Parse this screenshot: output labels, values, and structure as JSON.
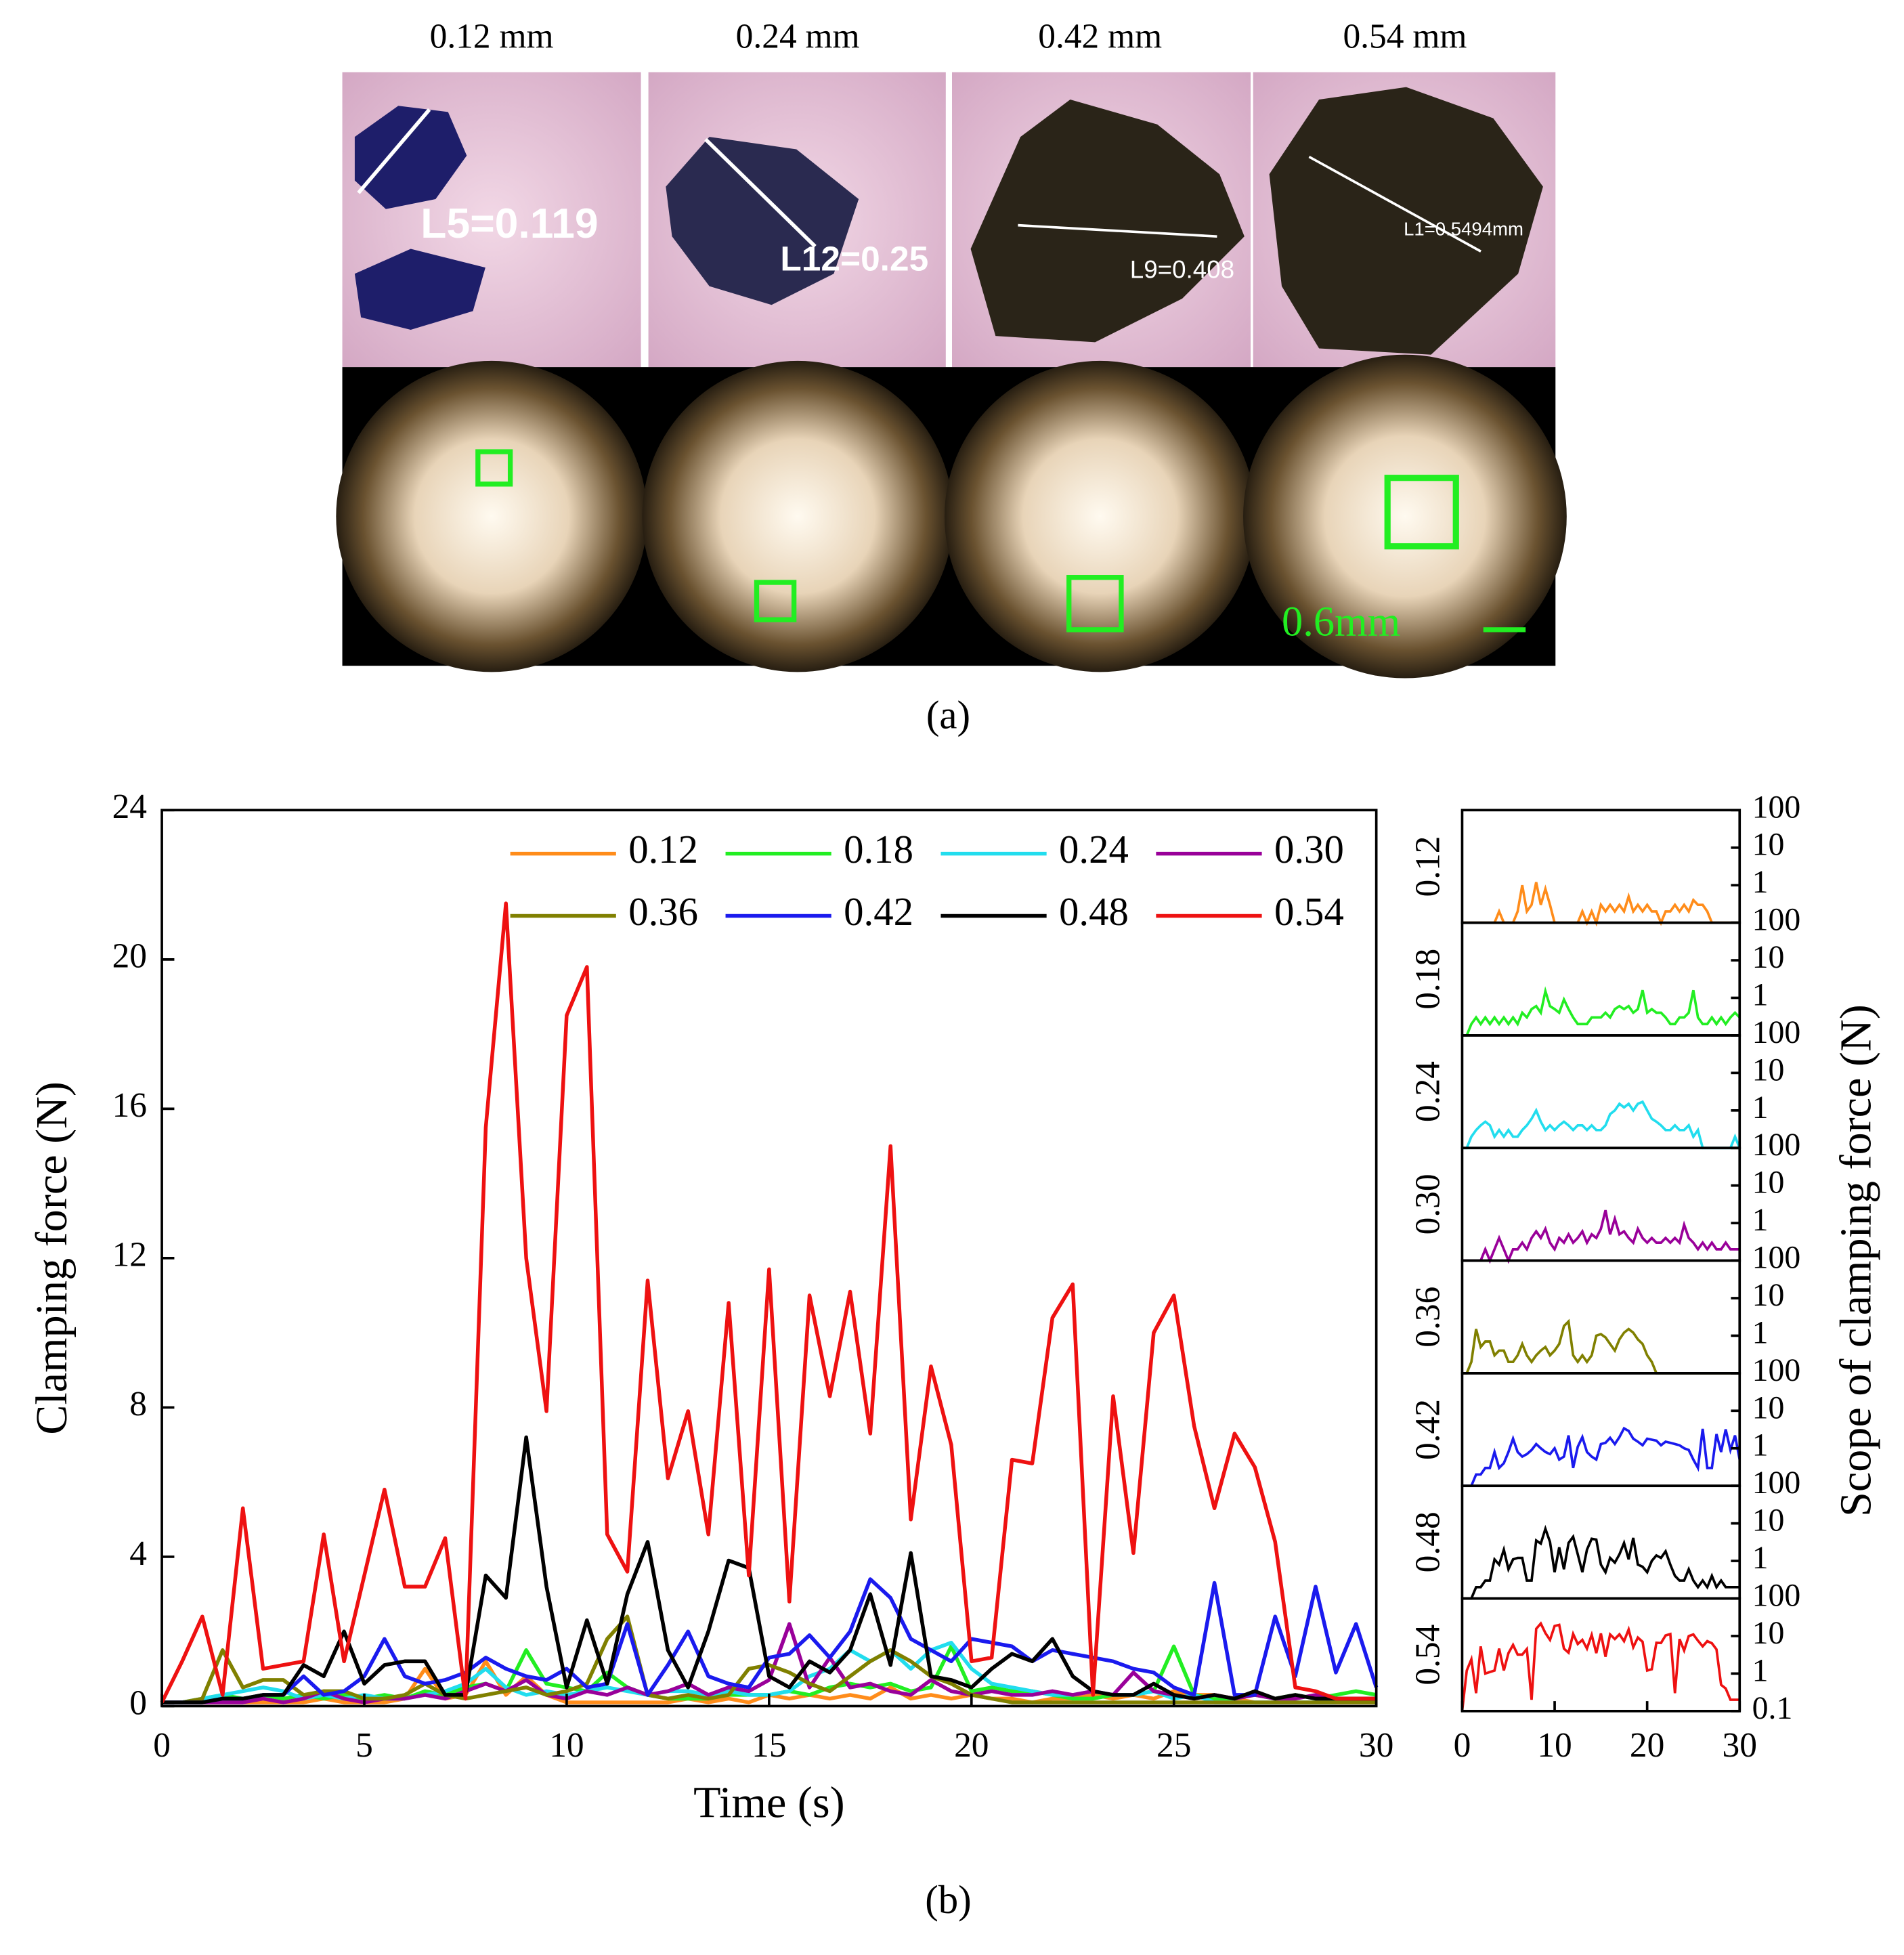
{
  "figure_a": {
    "sizes": [
      "0.12 mm",
      "0.24 mm",
      "0.42 mm",
      "0.54 mm"
    ],
    "measurements": [
      "L5=0.119",
      "L12=0.25",
      "L9=0.408",
      "L1=0.5494mm"
    ],
    "scale_bar": "0.6mm",
    "caption": "(a)"
  },
  "caption_b": "(b)",
  "chart_data": [
    {
      "type": "line",
      "xlabel": "Time (s)",
      "ylabel": "Clamping force (N)",
      "xlim": [
        0,
        30
      ],
      "xticks": [
        0,
        5,
        10,
        15,
        20,
        25,
        30
      ],
      "ylim": [
        0,
        24
      ],
      "yticks": [
        0,
        4,
        8,
        12,
        16,
        20,
        24
      ],
      "legend": "upper right",
      "x": [
        0,
        0.5,
        1,
        1.5,
        2,
        2.5,
        3,
        3.5,
        4,
        4.5,
        5,
        5.5,
        6,
        6.5,
        7,
        7.5,
        8,
        8.5,
        9,
        9.5,
        10,
        10.5,
        11,
        11.5,
        12,
        12.5,
        13,
        13.5,
        14,
        14.5,
        15,
        15.5,
        16,
        16.5,
        17,
        17.5,
        18,
        18.5,
        19,
        19.5,
        20,
        20.5,
        21,
        21.5,
        22,
        22.5,
        23,
        23.5,
        24,
        24.5,
        25,
        25.5,
        26,
        26.5,
        27,
        27.5,
        28,
        28.5,
        29,
        29.5,
        30
      ],
      "series": [
        {
          "name": "0.12",
          "color": "#ff8c1a",
          "values": [
            0.1,
            0.1,
            0.1,
            0.1,
            0.1,
            0.1,
            0.1,
            0.1,
            0.2,
            0.1,
            0.1,
            0.1,
            0.2,
            1.0,
            0.2,
            0.3,
            1.2,
            0.3,
            0.8,
            0.3,
            0.1,
            0.1,
            0.1,
            0.1,
            0.1,
            0.1,
            0.2,
            0.1,
            0.2,
            0.1,
            0.3,
            0.2,
            0.3,
            0.2,
            0.3,
            0.2,
            0.5,
            0.2,
            0.3,
            0.2,
            0.3,
            0.2,
            0.2,
            0.1,
            0.2,
            0.2,
            0.3,
            0.2,
            0.3,
            0.2,
            0.4,
            0.3,
            0.3,
            0.2,
            0.1,
            0.1,
            0.1,
            0.1,
            0.1,
            0.1,
            0.1
          ]
        },
        {
          "name": "0.18",
          "color": "#22ee22",
          "values": [
            0.1,
            0.1,
            0.2,
            0.3,
            0.2,
            0.3,
            0.2,
            0.3,
            0.2,
            0.3,
            0.2,
            0.3,
            0.2,
            0.4,
            0.3,
            0.5,
            0.6,
            0.4,
            1.5,
            0.6,
            0.5,
            0.4,
            0.9,
            0.5,
            0.3,
            0.2,
            0.2,
            0.2,
            0.3,
            0.3,
            0.3,
            0.4,
            0.3,
            0.5,
            0.6,
            0.5,
            0.6,
            0.4,
            0.5,
            1.6,
            0.4,
            0.5,
            0.4,
            0.4,
            0.3,
            0.2,
            0.2,
            0.3,
            0.3,
            0.4,
            1.6,
            0.3,
            0.2,
            0.2,
            0.3,
            0.2,
            0.3,
            0.2,
            0.3,
            0.4,
            0.3
          ]
        },
        {
          "name": "0.24",
          "color": "#22ddee",
          "values": [
            0.1,
            0.1,
            0.2,
            0.3,
            0.4,
            0.5,
            0.4,
            0.2,
            0.3,
            0.2,
            0.3,
            0.2,
            0.2,
            0.3,
            0.4,
            0.6,
            1.0,
            0.5,
            0.3,
            0.4,
            0.3,
            0.4,
            0.5,
            0.4,
            0.3,
            0.4,
            0.4,
            0.3,
            0.4,
            0.3,
            0.3,
            0.4,
            0.8,
            1.0,
            1.5,
            1.2,
            1.5,
            1.0,
            1.5,
            1.7,
            1.0,
            0.6,
            0.5,
            0.4,
            0.3,
            0.3,
            0.4,
            0.3,
            0.3,
            0.4,
            0.2,
            0.3,
            0.1,
            0.1,
            0.1,
            0.1,
            0.1,
            0.1,
            0.1,
            0.2,
            0.1
          ]
        },
        {
          "name": "0.30",
          "color": "#990099",
          "values": [
            0.1,
            0.1,
            0.1,
            0.1,
            0.1,
            0.2,
            0.1,
            0.2,
            0.4,
            0.2,
            0.1,
            0.2,
            0.2,
            0.3,
            0.2,
            0.4,
            0.6,
            0.4,
            0.7,
            0.3,
            0.2,
            0.4,
            0.3,
            0.5,
            0.3,
            0.4,
            0.6,
            0.3,
            0.5,
            0.4,
            0.7,
            2.2,
            0.5,
            1.3,
            0.5,
            0.6,
            0.4,
            0.3,
            0.7,
            0.4,
            0.3,
            0.4,
            0.3,
            0.3,
            0.4,
            0.3,
            0.4,
            0.3,
            0.9,
            0.4,
            0.3,
            0.2,
            0.3,
            0.2,
            0.3,
            0.2,
            0.2,
            0.3,
            0.2,
            0.2,
            0.2
          ]
        },
        {
          "name": "0.36",
          "color": "#808000",
          "values": [
            0.1,
            0.1,
            0.2,
            1.5,
            0.5,
            0.7,
            0.7,
            0.3,
            0.4,
            0.4,
            0.2,
            0.2,
            0.3,
            0.6,
            0.3,
            0.2,
            0.3,
            0.4,
            0.5,
            0.3,
            0.4,
            0.6,
            1.8,
            2.4,
            0.3,
            0.2,
            0.3,
            0.2,
            0.3,
            1.0,
            1.1,
            0.9,
            0.6,
            0.4,
            0.8,
            1.2,
            1.5,
            1.2,
            0.8,
            0.6,
            0.3,
            0.2,
            0.1,
            0.1,
            0.1,
            0.1,
            0.1,
            0.1,
            0.1,
            0.1,
            0.1,
            0.1,
            0.1,
            0.1,
            0.1,
            0.1,
            0.1,
            0.1,
            0.1,
            0.1,
            0.1
          ]
        },
        {
          "name": "0.42",
          "color": "#1a1aee",
          "values": [
            0.1,
            0.1,
            0.1,
            0.2,
            0.2,
            0.3,
            0.3,
            0.8,
            0.3,
            0.4,
            0.8,
            1.8,
            0.8,
            0.6,
            0.7,
            0.9,
            1.3,
            1.0,
            0.8,
            0.7,
            1.0,
            0.5,
            0.6,
            2.2,
            0.3,
            1.1,
            2.0,
            0.8,
            0.6,
            0.5,
            1.3,
            1.4,
            1.9,
            1.3,
            2.0,
            3.4,
            2.9,
            1.8,
            1.5,
            1.2,
            1.8,
            1.7,
            1.6,
            1.2,
            1.5,
            1.4,
            1.3,
            1.2,
            1.0,
            0.9,
            0.5,
            0.3,
            3.3,
            0.3,
            0.3,
            2.4,
            0.8,
            3.2,
            0.9,
            2.2,
            0.5
          ]
        },
        {
          "name": "0.48",
          "color": "#000000",
          "values": [
            0.1,
            0.1,
            0.1,
            0.2,
            0.2,
            0.3,
            0.3,
            1.1,
            0.8,
            2.0,
            0.6,
            1.1,
            1.2,
            1.2,
            0.3,
            0.3,
            3.5,
            2.9,
            7.2,
            3.2,
            0.5,
            2.3,
            0.6,
            3.0,
            4.4,
            1.5,
            0.5,
            2.0,
            3.9,
            3.7,
            0.8,
            0.5,
            1.2,
            0.9,
            1.5,
            3.0,
            1.1,
            4.1,
            0.8,
            0.7,
            0.5,
            1.0,
            1.4,
            1.2,
            1.8,
            0.8,
            0.4,
            0.3,
            0.3,
            0.6,
            0.3,
            0.2,
            0.3,
            0.2,
            0.4,
            0.2,
            0.3,
            0.2,
            0.2,
            0.2,
            0.2
          ]
        },
        {
          "name": "0.54",
          "color": "#ee1111",
          "values": [
            0.1,
            1.2,
            2.4,
            0.3,
            5.3,
            1.0,
            1.1,
            1.2,
            4.6,
            1.2,
            3.5,
            5.8,
            3.2,
            3.2,
            4.5,
            0.2,
            15.5,
            21.5,
            12.0,
            7.9,
            18.5,
            19.8,
            4.6,
            3.6,
            11.4,
            6.1,
            7.9,
            4.6,
            10.8,
            3.5,
            11.7,
            2.8,
            11.0,
            8.3,
            11.1,
            7.3,
            15.0,
            5.0,
            9.1,
            7.0,
            1.2,
            1.3,
            6.6,
            6.5,
            10.4,
            11.3,
            0.3,
            8.3,
            4.1,
            10.0,
            11.0,
            7.5,
            5.3,
            7.3,
            6.4,
            4.4,
            0.5,
            0.4,
            0.2,
            0.2,
            0.2
          ]
        }
      ]
    },
    {
      "type": "line",
      "log_scale": true,
      "ylabel": "Scope of clamping force (N)",
      "xlim": [
        0,
        30
      ],
      "xticks": [
        0,
        10,
        20,
        30
      ],
      "ylim": [
        0.1,
        100
      ],
      "yticks": [
        0.1,
        1,
        10,
        100
      ]
    }
  ]
}
